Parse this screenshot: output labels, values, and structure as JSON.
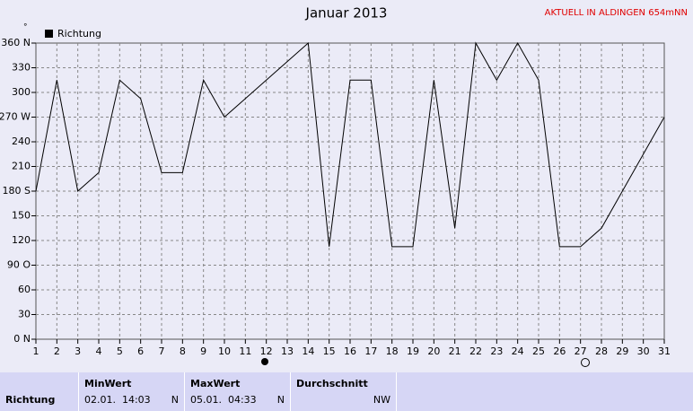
{
  "chart_data": {
    "type": "line",
    "title": "Januar 2013",
    "annotation": "AKTUELL IN ALDINGEN 654mNN",
    "x": [
      1,
      2,
      3,
      4,
      5,
      6,
      7,
      8,
      9,
      10,
      11,
      12,
      13,
      14,
      15,
      16,
      17,
      18,
      19,
      20,
      21,
      22,
      23,
      24,
      25,
      26,
      27,
      28,
      29,
      30,
      31
    ],
    "series": [
      {
        "name": "Richtung",
        "color": "#000000",
        "values": [
          180,
          315,
          180,
          202.5,
          315,
          292.5,
          202.5,
          202.5,
          315,
          270,
          292.5,
          315,
          337.5,
          360,
          112.5,
          315,
          315,
          112.5,
          112.5,
          315,
          135,
          360,
          315,
          360,
          315,
          112.5,
          112.5,
          135,
          180,
          225,
          270
        ]
      }
    ],
    "xlim": [
      1,
      31
    ],
    "xticks": [
      1,
      2,
      3,
      4,
      5,
      6,
      7,
      8,
      9,
      10,
      11,
      12,
      13,
      14,
      15,
      16,
      17,
      18,
      19,
      20,
      21,
      22,
      23,
      24,
      25,
      26,
      27,
      28,
      29,
      30,
      31
    ],
    "ylim": [
      0,
      360
    ],
    "yticks": [
      {
        "value": 0,
        "label": "0 N"
      },
      30,
      60,
      {
        "value": 90,
        "label": "90 O"
      },
      120,
      150,
      {
        "value": 180,
        "label": "180 S"
      },
      210,
      240,
      {
        "value": 270,
        "label": "270 W"
      },
      300,
      330,
      {
        "value": 360,
        "label": "360 N"
      }
    ],
    "grid": true,
    "legend": "top-left"
  },
  "summary": {
    "row_label": "Richtung",
    "columns": [
      {
        "header": "MinWert",
        "time": "02.01.  14:03",
        "dir": "N"
      },
      {
        "header": "MaxWert",
        "time": "05.01.  04:33",
        "dir": "N"
      },
      {
        "header": "Durchschnitt",
        "dir": "NW"
      }
    ]
  }
}
